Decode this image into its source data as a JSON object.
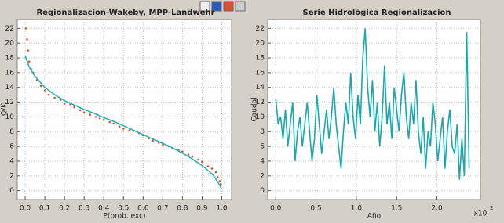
{
  "chart_data": [
    {
      "type": "scatter",
      "title": "Regionalizacion-Wakeby, MPP-Landwehr",
      "x_label": "P(prob. exc)",
      "y_label": "Q/K",
      "xlim": [
        -0.04,
        1.05
      ],
      "ylim": [
        -1.2,
        23.2
      ],
      "xticks": [
        {
          "value": 0,
          "label": "0.0"
        },
        0.1,
        0.2,
        0.3,
        0.4,
        0.5,
        0.6,
        0.7,
        0.8,
        0.9,
        {
          "value": 1,
          "label": "1.0"
        }
      ],
      "yticks": [
        0,
        2,
        4,
        6,
        8,
        10,
        12,
        14,
        16,
        18,
        20,
        22
      ],
      "grid": true,
      "series": [
        {
          "kind": "scatter",
          "color": "#e8501a",
          "x": [
            0.005,
            0.01,
            0.015,
            0.02,
            0.03,
            0.04,
            0.06,
            0.08,
            0.1,
            0.12,
            0.15,
            0.18,
            0.2,
            0.23,
            0.25,
            0.28,
            0.3,
            0.33,
            0.36,
            0.38,
            0.4,
            0.43,
            0.45,
            0.48,
            0.5,
            0.53,
            0.55,
            0.58,
            0.6,
            0.63,
            0.65,
            0.68,
            0.7,
            0.73,
            0.75,
            0.78,
            0.8,
            0.83,
            0.85,
            0.88,
            0.9,
            0.93,
            0.95,
            0.97,
            0.98,
            0.99,
            0.995
          ],
          "values": [
            22,
            20.5,
            19,
            17.5,
            16.5,
            16,
            15,
            14.2,
            13.6,
            13,
            12.6,
            12.3,
            11.8,
            11.7,
            11.3,
            10.9,
            10.6,
            10.3,
            10,
            9.8,
            9.6,
            9.3,
            9.1,
            8.7,
            8.4,
            8.2,
            8.1,
            7.8,
            7.5,
            7.1,
            6.8,
            6.5,
            6.2,
            6,
            5.8,
            5.5,
            5.3,
            4.9,
            4.6,
            4.2,
            3.9,
            3.3,
            3,
            2.5,
            1.8,
            1.3,
            0.9
          ]
        },
        {
          "kind": "line",
          "color": "#22b2c0",
          "x": [
            0,
            0.02,
            0.05,
            0.1,
            0.15,
            0.2,
            0.25,
            0.3,
            0.35,
            0.4,
            0.45,
            0.5,
            0.55,
            0.6,
            0.65,
            0.7,
            0.75,
            0.8,
            0.85,
            0.9,
            0.95,
            0.98,
            1.0
          ],
          "values": [
            18.3,
            16.8,
            15.5,
            14,
            13,
            12.2,
            11.6,
            11,
            10.5,
            9.9,
            9.4,
            8.8,
            8.2,
            7.6,
            7,
            6.4,
            5.8,
            5.1,
            4.3,
            3.4,
            2.3,
            1.2,
            0.2
          ]
        }
      ]
    },
    {
      "type": "line",
      "title": "Serie Hidrológica  Regionalizacion",
      "x_label": "Año",
      "y_label": "Caudal",
      "x_multiplier": {
        "base": "x10",
        "exponent": "2"
      },
      "xlim": [
        -0.1,
        2.54
      ],
      "ylim": [
        -1.2,
        23.2
      ],
      "xticks": [
        {
          "value": 0,
          "label": "0.0"
        },
        0.5,
        {
          "value": 1,
          "label": "1.0"
        },
        1.5,
        {
          "value": 2,
          "label": "2.0"
        }
      ],
      "yticks": [
        0,
        2,
        4,
        6,
        8,
        10,
        12,
        14,
        16,
        18,
        20,
        22
      ],
      "grid": true,
      "series": [
        {
          "kind": "line",
          "color": "#1aa8b0",
          "x": [
            0,
            0.03,
            0.06,
            0.09,
            0.12,
            0.15,
            0.18,
            0.21,
            0.24,
            0.27,
            0.3,
            0.33,
            0.36,
            0.39,
            0.42,
            0.45,
            0.48,
            0.51,
            0.54,
            0.57,
            0.6,
            0.63,
            0.66,
            0.69,
            0.72,
            0.75,
            0.78,
            0.81,
            0.84,
            0.87,
            0.9,
            0.93,
            0.96,
            0.99,
            1.02,
            1.05,
            1.08,
            1.11,
            1.14,
            1.17,
            1.2,
            1.23,
            1.26,
            1.29,
            1.32,
            1.35,
            1.38,
            1.41,
            1.44,
            1.47,
            1.5,
            1.53,
            1.56,
            1.59,
            1.62,
            1.65,
            1.68,
            1.71,
            1.74,
            1.77,
            1.8,
            1.83,
            1.86,
            1.89,
            1.92,
            1.95,
            1.98,
            2.01,
            2.04,
            2.07,
            2.1,
            2.13,
            2.16,
            2.19,
            2.22,
            2.25,
            2.28,
            2.31,
            2.34,
            2.37,
            2.4
          ],
          "values": [
            12.5,
            9,
            10,
            7,
            11,
            6,
            9,
            12,
            4,
            8,
            10,
            6,
            9,
            12,
            8,
            4,
            7,
            13,
            9,
            5,
            8,
            11,
            7,
            10,
            14,
            9,
            6,
            3,
            8,
            12,
            9,
            16,
            10,
            7,
            13,
            9,
            18,
            22,
            14,
            10,
            15,
            8,
            12,
            6,
            10,
            17,
            9,
            12,
            7,
            14,
            11,
            8,
            13,
            16,
            10,
            7,
            12,
            9,
            15,
            8,
            5,
            10,
            3,
            8,
            6,
            12,
            9,
            4,
            7,
            10,
            3,
            8,
            11,
            6,
            5,
            9,
            1.5,
            7,
            2,
            21.5,
            3
          ]
        }
      ]
    }
  ]
}
